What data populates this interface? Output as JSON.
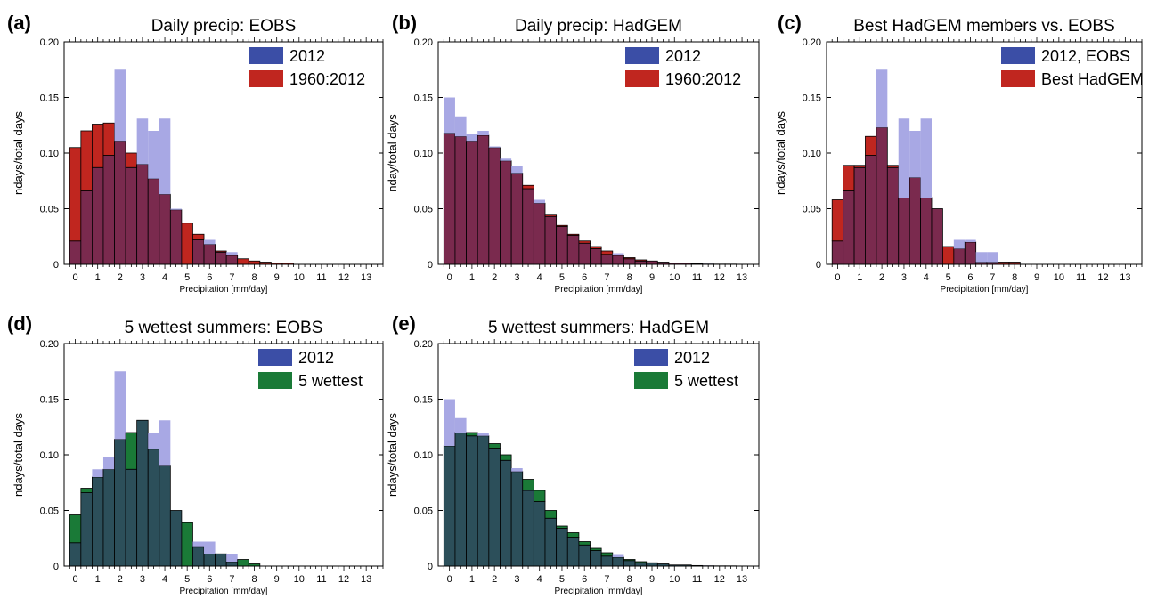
{
  "figure": {
    "colors": {
      "blue_legend": "#3b4ea6",
      "blue_bar": "#a8a8e4",
      "red": "#c0261f",
      "red_overlap": "#7a2a4e",
      "green": "#1a7a37",
      "green_overlap": "#2c4f5a"
    }
  },
  "chart_data": [
    {
      "panel_label": "(a)",
      "type": "bar",
      "title": "Daily precip: EOBS",
      "xlabel": "Precipitation [mm/day]",
      "ylabel": "ndays/total days",
      "ylim": [
        0,
        0.2
      ],
      "yticks": [
        "0",
        "0.05",
        "0.10",
        "0.15",
        "0.20"
      ],
      "xticks": [
        "0",
        "1",
        "2",
        "3",
        "4",
        "5",
        "6",
        "7",
        "8",
        "9",
        "10",
        "11",
        "12",
        "13"
      ],
      "bin_width": 0.5,
      "legend_position": "top-right",
      "overlay_style": "red",
      "series": [
        {
          "name": "2012",
          "values": [
            0.021,
            0.066,
            0.087,
            0.098,
            0.175,
            0.087,
            0.131,
            0.12,
            0.131,
            0.05,
            0,
            0.022,
            0.022,
            0.011,
            0.011,
            0,
            0,
            0,
            0,
            0,
            0,
            0,
            0,
            0,
            0,
            0,
            0,
            0
          ]
        },
        {
          "name": "1960:2012",
          "values": [
            0.105,
            0.12,
            0.126,
            0.127,
            0.111,
            0.1,
            0.09,
            0.077,
            0.063,
            0.049,
            0.037,
            0.027,
            0.018,
            0.012,
            0.008,
            0.005,
            0.003,
            0.002,
            0.001,
            0.001,
            0,
            0,
            0,
            0,
            0,
            0,
            0,
            0
          ]
        }
      ]
    },
    {
      "panel_label": "(b)",
      "type": "bar",
      "title": "Daily precip: HadGEM",
      "xlabel": "Precipitation [mm/day]",
      "ylabel": "nday/total days",
      "ylim": [
        0,
        0.2
      ],
      "yticks": [
        "0",
        "0.05",
        "0.10",
        "0.15",
        "0.20"
      ],
      "xticks": [
        "0",
        "1",
        "2",
        "3",
        "4",
        "5",
        "6",
        "7",
        "8",
        "9",
        "10",
        "11",
        "12",
        "13"
      ],
      "bin_width": 0.5,
      "legend_position": "top-right",
      "overlay_style": "red",
      "series": [
        {
          "name": "2012",
          "values": [
            0.15,
            0.133,
            0.117,
            0.12,
            0.106,
            0.095,
            0.088,
            0.068,
            0.058,
            0.043,
            0.034,
            0.026,
            0.019,
            0.014,
            0.009,
            0.01,
            0.005,
            0.003,
            0.003,
            0.002,
            0.001,
            0.001,
            0.0005,
            0.0005,
            0.0003,
            0.0003,
            0.0002,
            0
          ]
        },
        {
          "name": "1960:2012",
          "values": [
            0.118,
            0.115,
            0.111,
            0.116,
            0.105,
            0.093,
            0.082,
            0.071,
            0.055,
            0.045,
            0.035,
            0.027,
            0.021,
            0.016,
            0.012,
            0.008,
            0.006,
            0.004,
            0.003,
            0.002,
            0.001,
            0.001,
            0.0005,
            0.0003,
            0.0002,
            0.0002,
            0.0001,
            0
          ]
        }
      ]
    },
    {
      "panel_label": "(c)",
      "type": "bar",
      "title": "Best HadGEM members vs. EOBS",
      "xlabel": "Precipitation [mm/day]",
      "ylabel": "ndays/total days",
      "ylim": [
        0,
        0.2
      ],
      "yticks": [
        "0",
        "0.05",
        "0.10",
        "0.15",
        "0.20"
      ],
      "xticks": [
        "0",
        "1",
        "2",
        "3",
        "4",
        "5",
        "6",
        "7",
        "8",
        "9",
        "10",
        "11",
        "12",
        "13"
      ],
      "bin_width": 0.5,
      "legend_position": "top-right",
      "overlay_style": "red",
      "series": [
        {
          "name": "2012, EOBS",
          "values": [
            0.021,
            0.066,
            0.087,
            0.098,
            0.175,
            0.087,
            0.131,
            0.12,
            0.131,
            0.05,
            0,
            0.022,
            0.022,
            0.011,
            0.011,
            0,
            0,
            0,
            0,
            0,
            0,
            0,
            0,
            0,
            0,
            0,
            0,
            0
          ]
        },
        {
          "name": "Best HadGEM",
          "values": [
            0.058,
            0.089,
            0.089,
            0.115,
            0.123,
            0.089,
            0.06,
            0.078,
            0.06,
            0.05,
            0.016,
            0.014,
            0.02,
            0.002,
            0.002,
            0.002,
            0.002,
            0,
            0,
            0,
            0,
            0,
            0,
            0,
            0,
            0,
            0,
            0
          ]
        }
      ]
    },
    {
      "panel_label": "(d)",
      "type": "bar",
      "title": "5 wettest summers: EOBS",
      "xlabel": "Precipitation [mm/day]",
      "ylabel": "ndays/total days",
      "ylim": [
        0,
        0.2
      ],
      "yticks": [
        "0",
        "0.05",
        "0.10",
        "0.15",
        "0.20"
      ],
      "xticks": [
        "0",
        "1",
        "2",
        "3",
        "4",
        "5",
        "6",
        "7",
        "8",
        "9",
        "10",
        "11",
        "12",
        "13"
      ],
      "bin_width": 0.5,
      "legend_position": "top-right",
      "overlay_style": "green",
      "series": [
        {
          "name": "2012",
          "values": [
            0.021,
            0.066,
            0.087,
            0.098,
            0.175,
            0.087,
            0.131,
            0.12,
            0.131,
            0.05,
            0,
            0.022,
            0.022,
            0.011,
            0.011,
            0,
            0,
            0,
            0,
            0,
            0,
            0,
            0,
            0,
            0,
            0,
            0,
            0
          ]
        },
        {
          "name": "5 wettest",
          "values": [
            0.046,
            0.07,
            0.08,
            0.087,
            0.114,
            0.12,
            0.131,
            0.105,
            0.09,
            0.05,
            0.039,
            0.017,
            0.011,
            0.011,
            0.004,
            0.006,
            0.002,
            0,
            0,
            0,
            0,
            0,
            0,
            0,
            0,
            0,
            0,
            0
          ]
        }
      ]
    },
    {
      "panel_label": "(e)",
      "type": "bar",
      "title": "5 wettest summers: HadGEM",
      "xlabel": "Precipitation [mm/day]",
      "ylabel": "ndays/total days",
      "ylim": [
        0,
        0.2
      ],
      "yticks": [
        "0",
        "0.05",
        "0.10",
        "0.15",
        "0.20"
      ],
      "xticks": [
        "0",
        "1",
        "2",
        "3",
        "4",
        "5",
        "6",
        "7",
        "8",
        "9",
        "10",
        "11",
        "12",
        "13"
      ],
      "bin_width": 0.5,
      "legend_position": "top-right",
      "overlay_style": "green",
      "series": [
        {
          "name": "2012",
          "values": [
            0.15,
            0.133,
            0.117,
            0.12,
            0.106,
            0.095,
            0.088,
            0.068,
            0.058,
            0.043,
            0.034,
            0.026,
            0.019,
            0.014,
            0.009,
            0.01,
            0.005,
            0.003,
            0.003,
            0.002,
            0.001,
            0.001,
            0.0005,
            0.0005,
            0.0003,
            0.0003,
            0.0002,
            0
          ]
        },
        {
          "name": "5 wettest",
          "values": [
            0.108,
            0.12,
            0.12,
            0.117,
            0.11,
            0.1,
            0.085,
            0.078,
            0.068,
            0.05,
            0.036,
            0.03,
            0.022,
            0.016,
            0.012,
            0.008,
            0.006,
            0.004,
            0.003,
            0.002,
            0.001,
            0.001,
            0.0005,
            0.0003,
            0.0002,
            0.0002,
            0.0001,
            0
          ]
        }
      ]
    }
  ]
}
